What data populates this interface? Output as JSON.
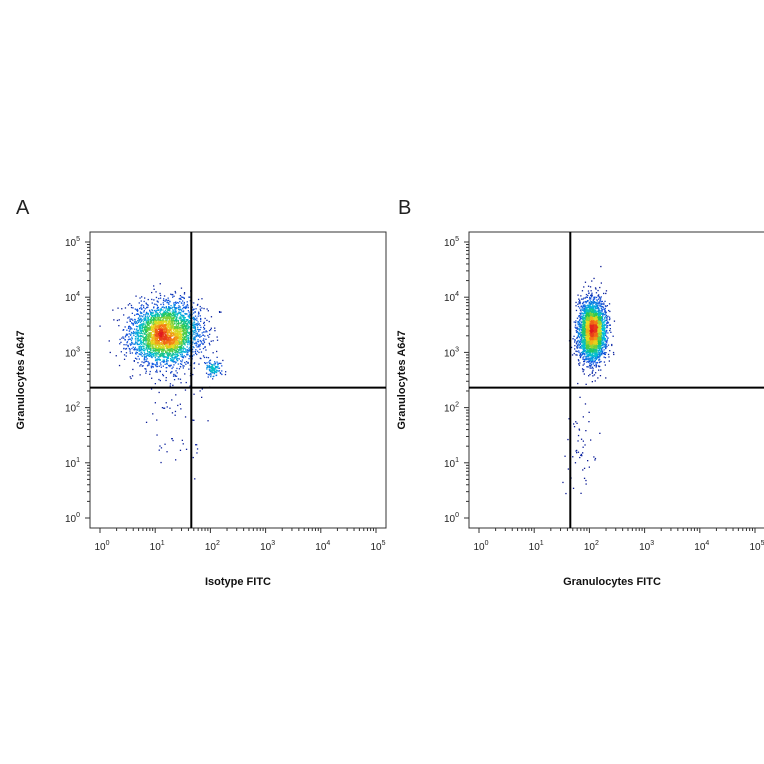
{
  "chart_data": [
    {
      "type": "scatter",
      "panel": "A",
      "xlabel": "Isotype FITC",
      "ylabel": "Granulocytes A647",
      "xscale": "log",
      "yscale": "log",
      "xlim": [
        1,
        100000
      ],
      "ylim": [
        1,
        100000
      ],
      "x_ticks": [
        "10^0",
        "10^1",
        "10^2",
        "10^3",
        "10^4",
        "10^5"
      ],
      "y_ticks": [
        "10^0",
        "10^1",
        "10^2",
        "10^3",
        "10^4",
        "10^5"
      ],
      "quadrant_gate": {
        "x": 45,
        "y": 230
      },
      "colormap": "density (blue-cyan-green-yellow-orange-red)",
      "populations": [
        {
          "label": "main cluster",
          "x_center": 15,
          "y_center": 2200,
          "x_log_sd": 0.32,
          "y_log_sd": 0.28,
          "count": 3200
        },
        {
          "label": "small cluster",
          "x_center": 110,
          "y_center": 520,
          "x_log_sd": 0.08,
          "y_log_sd": 0.07,
          "count": 120
        },
        {
          "label": "low tail",
          "x_center": 25,
          "y_center": 60,
          "x_log_sd": 0.3,
          "y_log_sd": 0.5,
          "count": 60
        }
      ]
    },
    {
      "type": "scatter",
      "panel": "B",
      "xlabel": "Granulocytes FITC",
      "ylabel": "Granulocytes A647",
      "xscale": "log",
      "yscale": "log",
      "xlim": [
        1,
        100000
      ],
      "ylim": [
        1,
        100000
      ],
      "x_ticks": [
        "10^0",
        "10^1",
        "10^2",
        "10^3",
        "10^4",
        "10^5"
      ],
      "y_ticks": [
        "10^0",
        "10^1",
        "10^2",
        "10^3",
        "10^4",
        "10^5"
      ],
      "quadrant_gate": {
        "x": 45,
        "y": 230
      },
      "colormap": "density (blue-cyan-green-yellow-orange-red)",
      "populations": [
        {
          "label": "main cluster",
          "x_center": 110,
          "y_center": 2500,
          "x_log_sd": 0.12,
          "y_log_sd": 0.28,
          "count": 3000
        },
        {
          "label": "low tail",
          "x_center": 70,
          "y_center": 25,
          "x_log_sd": 0.12,
          "y_log_sd": 0.5,
          "count": 50
        }
      ]
    }
  ],
  "panels": {
    "a": {
      "letter": "A",
      "xlabel": "Isotype FITC",
      "ylabel": "Granulocytes A647"
    },
    "b": {
      "letter": "B",
      "xlabel": "Granulocytes FITC",
      "ylabel": "Granulocytes A647"
    }
  }
}
